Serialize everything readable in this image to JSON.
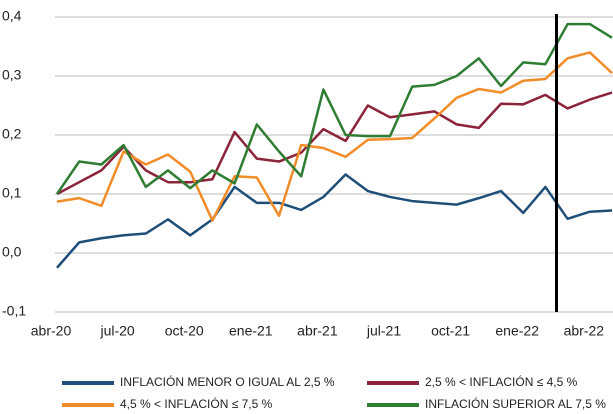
{
  "chart_data": {
    "type": "line",
    "categories": [
      "abr-20",
      null,
      null,
      "jul-20",
      null,
      null,
      "oct-20",
      null,
      null,
      "ene-21",
      null,
      null,
      "abr-21",
      null,
      null,
      "jul-21",
      null,
      null,
      "oct-21",
      null,
      null,
      "ene-22",
      null,
      null,
      "abr-22",
      null
    ],
    "series": [
      {
        "name": "INFLACIÓN MENOR O IGUAL AL 2,5 %",
        "color": "#1f4e79",
        "values": [
          -0.025,
          0.018,
          0.025,
          0.03,
          0.033,
          0.057,
          0.03,
          0.057,
          0.112,
          0.085,
          0.085,
          0.073,
          0.095,
          0.133,
          0.105,
          0.095,
          0.088,
          0.085,
          0.082,
          0.093,
          0.105,
          0.068,
          0.112,
          0.058,
          0.07,
          0.072
        ]
      },
      {
        "name": "2,5 % < INFLACIÓN ≤ 4,5 %",
        "color": "#8b2339",
        "values": [
          0.1,
          0.12,
          0.14,
          0.18,
          0.14,
          0.12,
          0.12,
          0.125,
          0.205,
          0.16,
          0.155,
          0.17,
          0.21,
          0.19,
          0.25,
          0.23,
          0.235,
          0.24,
          0.218,
          0.212,
          0.253,
          0.252,
          0.268,
          0.245,
          0.26,
          0.272
        ]
      },
      {
        "name": "4,5 % < INFLACIÓN ≤ 7,5 %",
        "color": "#f28c28",
        "values": [
          0.087,
          0.093,
          0.08,
          0.172,
          0.15,
          0.167,
          0.138,
          0.055,
          0.13,
          0.128,
          0.063,
          0.183,
          0.178,
          0.163,
          0.192,
          0.193,
          0.195,
          0.228,
          0.263,
          0.278,
          0.272,
          0.292,
          0.295,
          0.33,
          0.34,
          0.305
        ]
      },
      {
        "name": "INFLACIÓN SUPERIOR AL 7,5 %",
        "color": "#2e7d32",
        "values": [
          0.1,
          0.155,
          0.15,
          0.183,
          0.112,
          0.14,
          0.11,
          0.14,
          0.118,
          0.218,
          0.172,
          0.13,
          0.277,
          0.2,
          0.198,
          0.198,
          0.282,
          0.285,
          0.3,
          0.33,
          0.283,
          0.323,
          0.32,
          0.388,
          0.388,
          0.365
        ]
      }
    ],
    "ylim": [
      -0.1,
      0.4
    ],
    "yticks": [
      {
        "value": -0.1,
        "label": "-0,1"
      },
      {
        "value": 0,
        "label": "0,0"
      },
      {
        "value": 0.1,
        "label": "0,1"
      },
      {
        "value": 0.2,
        "label": "0,2"
      },
      {
        "value": 0.3,
        "label": "0,3"
      },
      {
        "value": 0.4,
        "label": "0,4"
      }
    ],
    "grid": true
  }
}
